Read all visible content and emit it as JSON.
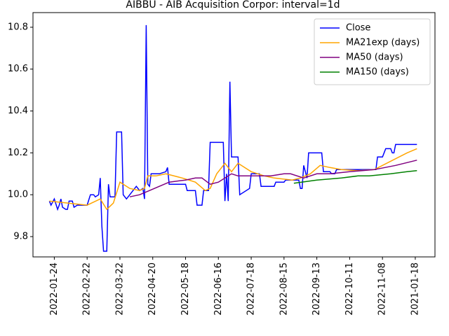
{
  "chart_data": {
    "type": "line",
    "title": "AIBBU - AIB Acquisition Corpor: interval=1d",
    "xlim": [
      -13,
      232
    ],
    "xticks": [
      {
        "value": 0,
        "label": "2022-01-24"
      },
      {
        "value": 20,
        "label": "2022-02-22"
      },
      {
        "value": 40,
        "label": "2022-03-22"
      },
      {
        "value": 60,
        "label": "2022-04-20"
      },
      {
        "value": 80,
        "label": "2022-05-18"
      },
      {
        "value": 100,
        "label": "2022-06-16"
      },
      {
        "value": 120,
        "label": "2022-07-18"
      },
      {
        "value": 140,
        "label": "2022-08-15"
      },
      {
        "value": 160,
        "label": "2022-09-13"
      },
      {
        "value": 180,
        "label": "2022-10-11"
      },
      {
        "value": 200,
        "label": "2022-11-08"
      },
      {
        "value": 220,
        "label": "2021-01-18"
      }
    ],
    "ylim": [
      9.703,
      10.87
    ],
    "yticks": [
      9.8,
      {
        "value": 10,
        "label": "10.0"
      },
      10.2,
      10.4,
      10.6,
      10.8
    ],
    "legend": "upper right",
    "series": [
      {
        "name": "Close",
        "color": "#0000ff",
        "x": [
          -3,
          -2,
          0,
          2,
          3,
          4,
          5,
          7,
          8,
          9,
          11,
          12,
          14,
          20,
          22,
          24,
          25,
          27,
          28,
          29,
          30,
          32,
          33,
          34,
          37,
          38,
          41,
          42,
          44,
          47,
          50,
          52,
          54,
          55,
          56,
          57,
          58,
          59,
          64,
          68,
          69,
          70,
          80,
          81,
          86,
          87,
          90,
          91,
          94,
          95,
          103,
          104,
          105,
          106,
          107,
          108,
          112,
          113,
          119,
          120,
          125,
          126,
          134,
          135,
          140,
          141,
          149,
          150,
          151,
          152,
          154,
          155,
          163,
          164,
          168,
          169,
          171,
          172,
          196,
          197,
          200,
          202,
          205,
          206,
          207,
          208,
          221
        ],
        "values": [
          9.97,
          9.95,
          9.98,
          9.93,
          9.95,
          9.98,
          9.94,
          9.93,
          9.93,
          9.97,
          9.97,
          9.94,
          9.95,
          9.95,
          10.0,
          10.0,
          9.99,
          10.0,
          10.08,
          9.85,
          9.73,
          9.73,
          10.05,
          9.99,
          9.99,
          10.3,
          10.3,
          10.0,
          9.98,
          10.01,
          10.04,
          10.02,
          10.03,
          9.98,
          10.81,
          10.05,
          10.04,
          10.1,
          10.1,
          10.11,
          10.13,
          10.05,
          10.05,
          10.02,
          10.02,
          9.95,
          9.95,
          10.02,
          10.02,
          10.25,
          10.25,
          9.97,
          10.1,
          9.97,
          10.54,
          10.18,
          10.18,
          10.0,
          10.03,
          10.1,
          10.1,
          10.04,
          10.04,
          10.06,
          10.06,
          10.07,
          10.07,
          10.03,
          10.03,
          10.14,
          10.08,
          10.2,
          10.2,
          10.11,
          10.11,
          10.1,
          10.1,
          10.12,
          10.12,
          10.18,
          10.18,
          10.22,
          10.22,
          10.2,
          10.2,
          10.24,
          10.24
        ]
      },
      {
        "name": "MA21exp (days)",
        "color": "#ffa500",
        "x": [
          -3,
          20,
          28,
          32,
          36,
          40,
          46,
          52,
          55,
          57,
          62,
          68,
          78,
          86,
          92,
          95,
          99,
          104,
          108,
          112,
          120,
          128,
          134,
          145,
          150,
          156,
          162,
          168,
          175,
          185,
          195,
          205,
          215,
          221
        ],
        "values": [
          9.97,
          9.95,
          9.98,
          9.93,
          9.96,
          10.06,
          10.03,
          10.02,
          10.03,
          10.09,
          10.09,
          10.1,
          10.08,
          10.06,
          10.02,
          10.03,
          10.1,
          10.15,
          10.11,
          10.15,
          10.11,
          10.09,
          10.08,
          10.07,
          10.08,
          10.1,
          10.14,
          10.13,
          10.12,
          10.115,
          10.12,
          10.16,
          10.2,
          10.22
        ]
      },
      {
        "name": "MA50 (days)",
        "color": "#800080",
        "x": [
          46,
          52,
          58,
          64,
          70,
          80,
          86,
          90,
          95,
          100,
          108,
          112,
          120,
          132,
          140,
          144,
          152,
          160,
          168,
          180,
          195,
          208,
          221
        ],
        "values": [
          9.99,
          10.0,
          10.02,
          10.04,
          10.06,
          10.07,
          10.08,
          10.08,
          10.05,
          10.06,
          10.1,
          10.09,
          10.09,
          10.09,
          10.1,
          10.1,
          10.08,
          10.1,
          10.1,
          10.11,
          10.12,
          10.14,
          10.165
        ]
      },
      {
        "name": "MA150 (days)",
        "color": "#008000",
        "x": [
          146,
          160,
          175,
          185,
          192,
          205,
          215,
          221
        ],
        "values": [
          10.055,
          10.07,
          10.08,
          10.09,
          10.09,
          10.1,
          10.11,
          10.115
        ]
      }
    ]
  }
}
